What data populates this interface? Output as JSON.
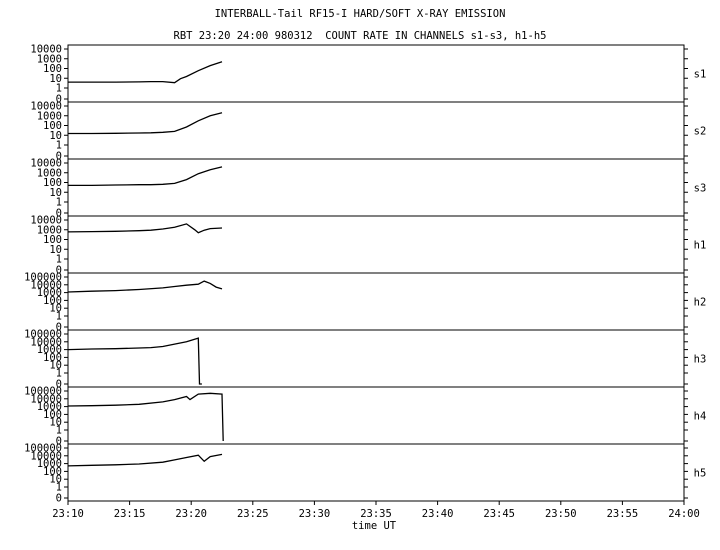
{
  "header": {
    "title": "INTERBALL-Tail RF15-I HARD/SOFT X-RAY EMISSION",
    "subtitle": "RBT 23:20 24:00 980312  COUNT RATE IN CHANNELS s1-s3, h1-h5"
  },
  "chart_data": {
    "type": "line",
    "x_label": "time UT",
    "x_ticks": [
      "23:10",
      "23:15",
      "23:20",
      "23:25",
      "23:30",
      "23:35",
      "23:40",
      "23:45",
      "23:50",
      "23:55",
      "24:00"
    ],
    "x_range_min": [
      1388,
      1440
    ],
    "y_scale": "log",
    "grid": false,
    "panels": [
      {
        "name": "s1",
        "y_ticks": [
          "10000",
          "1000",
          "100",
          "10",
          "1",
          "0"
        ],
        "series": [
          {
            "x": [
              1388,
              1390,
              1392,
              1394,
              1395,
              1396,
              1397,
              1397.5,
              1398,
              1399,
              1400,
              1401
            ],
            "y": [
              4,
              4,
              4,
              4.2,
              4.5,
              4.5,
              3.5,
              9,
              15,
              60,
              200,
              500
            ]
          }
        ]
      },
      {
        "name": "s2",
        "y_ticks": [
          "10000",
          "1000",
          "100",
          "10",
          "1",
          "0"
        ],
        "series": [
          {
            "x": [
              1388,
              1390,
              1392,
              1394,
              1395,
              1396,
              1397,
              1398,
              1399,
              1400,
              1401
            ],
            "y": [
              15,
              15,
              16,
              17,
              18,
              20,
              25,
              70,
              300,
              1000,
              2000
            ]
          }
        ]
      },
      {
        "name": "s3",
        "y_ticks": [
          "10000",
          "1000",
          "100",
          "10",
          "1",
          "0"
        ],
        "series": [
          {
            "x": [
              1388,
              1390,
              1392,
              1394,
              1395,
              1396,
              1397,
              1398,
              1399,
              1400,
              1401
            ],
            "y": [
              50,
              50,
              55,
              60,
              60,
              65,
              80,
              200,
              800,
              2000,
              4000
            ]
          }
        ]
      },
      {
        "name": "h1",
        "y_ticks": [
          "10000",
          "1000",
          "100",
          "10",
          "1",
          "0"
        ],
        "series": [
          {
            "x": [
              1388,
              1390,
              1392,
              1394,
              1395,
              1396,
              1397,
              1398,
              1398.7,
              1399,
              1399.5,
              1400,
              1401
            ],
            "y": [
              600,
              650,
              700,
              800,
              900,
              1200,
              1800,
              4000,
              1000,
              500,
              900,
              1300,
              1500
            ]
          }
        ]
      },
      {
        "name": "h2",
        "y_ticks": [
          "100000",
          "10000",
          "1000",
          "100",
          "10",
          "1",
          "0"
        ],
        "series": [
          {
            "x": [
              1388,
              1390,
              1392,
              1394,
              1396,
              1397,
              1398,
              1399,
              1399.5,
              1400,
              1400.5,
              1401
            ],
            "y": [
              1200,
              1500,
              1800,
              2500,
              4000,
              6000,
              9000,
              12000,
              30000,
              15000,
              5000,
              3000
            ]
          }
        ]
      },
      {
        "name": "h3",
        "y_ticks": [
          "100000",
          "10000",
          "1000",
          "100",
          "10",
          "1",
          "0"
        ],
        "series": [
          {
            "x": [
              1388,
              1390,
              1392,
              1394,
              1395,
              1396,
              1397,
              1398,
              1399,
              1399.1,
              1399.3
            ],
            "y": [
              1000,
              1200,
              1300,
              1600,
              1800,
              2500,
              5000,
              10000,
              30000,
              0.3,
              0.3
            ]
          }
        ]
      },
      {
        "name": "h4",
        "y_ticks": [
          "100000",
          "10000",
          "1000",
          "100",
          "10",
          "1",
          "0"
        ],
        "series": [
          {
            "x": [
              1388,
              1390,
              1392,
              1394,
              1396,
              1397,
              1398,
              1398.3,
              1399,
              1400,
              1401,
              1401.1
            ],
            "y": [
              1200,
              1300,
              1500,
              2000,
              4000,
              8000,
              20000,
              8000,
              40000,
              50000,
              40000,
              0.3
            ]
          }
        ]
      },
      {
        "name": "h5",
        "y_ticks": [
          "100000",
          "10000",
          "1000",
          "100",
          "10",
          "1",
          "0"
        ],
        "series": [
          {
            "x": [
              1388,
              1390,
              1392,
              1394,
              1396,
              1397,
              1398,
              1399,
              1399.5,
              1400,
              1401
            ],
            "y": [
              500,
              600,
              700,
              900,
              1500,
              3000,
              6000,
              12000,
              2000,
              8000,
              15000
            ]
          }
        ]
      }
    ]
  }
}
